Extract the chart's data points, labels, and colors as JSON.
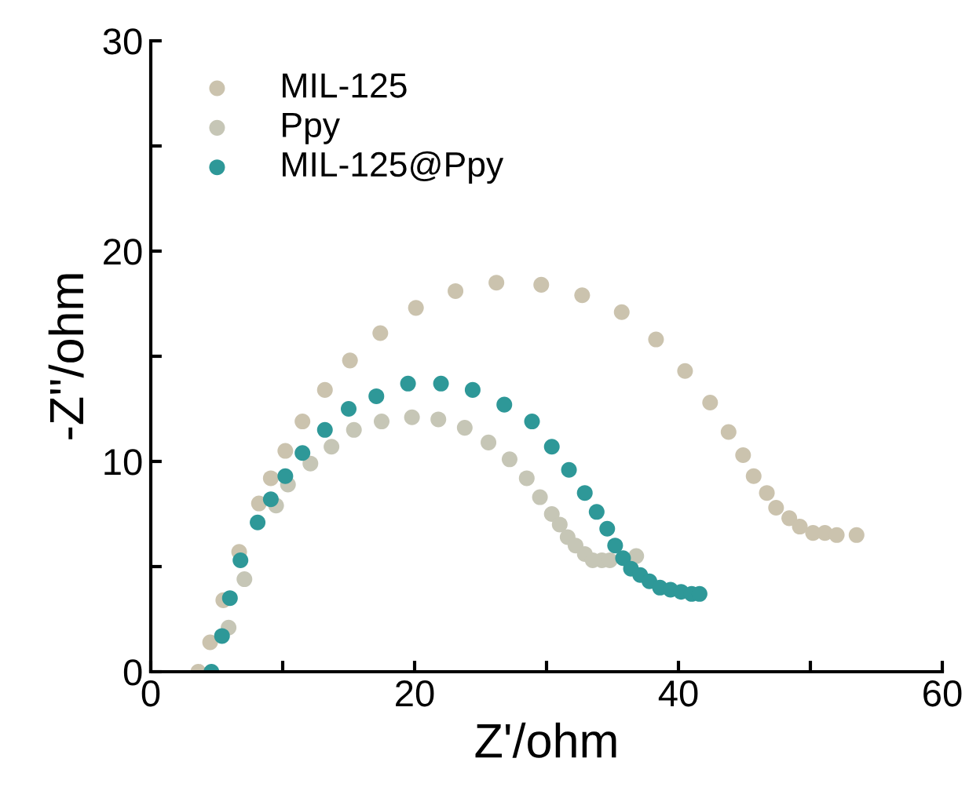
{
  "chart_data": {
    "type": "scatter",
    "xlabel": "Z'/ohm",
    "ylabel": "-Z''/ohm",
    "xlim": [
      0,
      60
    ],
    "ylim": [
      0,
      30
    ],
    "xticks": [
      0,
      {
        "value": 10,
        "label": null
      },
      20,
      {
        "value": 30,
        "label": null
      },
      40,
      {
        "value": 50,
        "label": null
      },
      60
    ],
    "yticks": [
      0,
      {
        "value": 5,
        "label": null
      },
      10,
      {
        "value": 15,
        "label": null
      },
      20,
      {
        "value": 25,
        "label": null
      },
      30
    ],
    "grid": false,
    "legend": "top left",
    "marker": "circle",
    "series": [
      {
        "name": "MIL-125",
        "color": "#cbc3ae",
        "x": [
          3.6,
          4.5,
          5.5,
          6.7,
          8.2,
          9.1,
          10.2,
          11.5,
          13.2,
          15.1,
          17.4,
          20.1,
          23.1,
          26.2,
          29.6,
          32.7,
          35.7,
          38.3,
          40.5,
          42.4,
          43.8,
          44.9,
          45.7,
          46.7,
          47.4,
          48.4,
          49.2,
          50.2,
          51.1,
          52.0,
          53.5
        ],
        "values": [
          0.0,
          1.4,
          3.4,
          5.7,
          8.0,
          9.2,
          10.5,
          11.9,
          13.4,
          14.8,
          16.1,
          17.3,
          18.1,
          18.5,
          18.4,
          17.9,
          17.1,
          15.8,
          14.3,
          12.8,
          11.4,
          10.3,
          9.3,
          8.5,
          7.8,
          7.3,
          6.9,
          6.6,
          6.6,
          6.5,
          6.5
        ]
      },
      {
        "name": "Ppy",
        "color": "#c6c6b6",
        "x": [
          5.9,
          7.1,
          9.5,
          10.4,
          12.1,
          13.7,
          15.4,
          17.5,
          19.8,
          21.8,
          23.8,
          25.6,
          27.2,
          28.5,
          29.5,
          30.4,
          31.0,
          31.6,
          32.2,
          32.9,
          33.5,
          34.2,
          34.8,
          36.8
        ],
        "values": [
          2.1,
          4.4,
          7.9,
          8.9,
          9.9,
          10.7,
          11.5,
          11.9,
          12.1,
          12.0,
          11.6,
          10.9,
          10.1,
          9.2,
          8.3,
          7.5,
          7.0,
          6.4,
          6.0,
          5.6,
          5.3,
          5.3,
          5.3,
          5.5
        ]
      },
      {
        "name": "MIL-125@Ppy",
        "color": "#2e9898",
        "x": [
          4.6,
          5.4,
          6.0,
          6.8,
          8.1,
          9.1,
          10.2,
          11.5,
          13.2,
          15.0,
          17.1,
          19.5,
          22.0,
          24.4,
          26.8,
          28.9,
          30.4,
          31.7,
          32.9,
          33.8,
          34.6,
          35.2,
          35.8,
          36.4,
          37.1,
          37.8,
          38.6,
          39.4,
          40.2,
          41.0,
          41.6
        ],
        "values": [
          0.0,
          1.7,
          3.5,
          5.3,
          7.1,
          8.2,
          9.3,
          10.4,
          11.5,
          12.5,
          13.1,
          13.7,
          13.7,
          13.4,
          12.7,
          11.9,
          10.7,
          9.6,
          8.5,
          7.6,
          6.8,
          6.0,
          5.4,
          4.9,
          4.6,
          4.3,
          4.0,
          3.9,
          3.8,
          3.7,
          3.7
        ]
      }
    ]
  }
}
